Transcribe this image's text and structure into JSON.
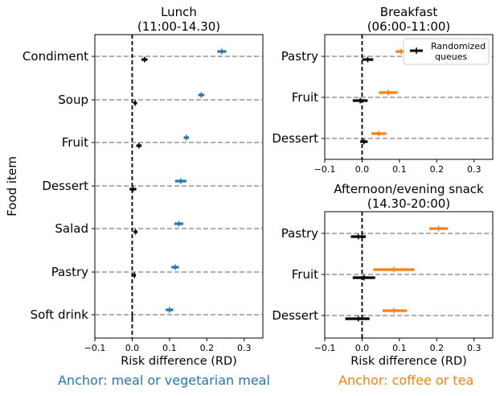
{
  "chart_data": [
    {
      "type": "forest",
      "title": "Lunch",
      "subtitle": "(11:00-14.30)",
      "xlabel": "Risk difference (RD)",
      "ylabel": "Food item",
      "xlim": [
        -0.1,
        0.35
      ],
      "xticks": [
        "−0.1",
        "0.0",
        "0.1",
        "0.2",
        "0.3"
      ],
      "xtick_values": [
        -0.1,
        0.0,
        0.1,
        0.2,
        0.3
      ],
      "categories": [
        "Condiment",
        "Soup",
        "Fruit",
        "Dessert",
        "Salad",
        "Pastry",
        "Soft drink"
      ],
      "series": [
        {
          "name": "Anchor",
          "color": "#1f77b4",
          "values": [
            0.24,
            0.185,
            0.145,
            0.13,
            0.125,
            0.115,
            0.1
          ],
          "ci_low": [
            0.228,
            0.177,
            0.138,
            0.115,
            0.113,
            0.105,
            0.09
          ],
          "ci_high": [
            0.252,
            0.193,
            0.152,
            0.145,
            0.137,
            0.125,
            0.11
          ]
        },
        {
          "name": "Randomized queues",
          "color": "#000000",
          "values": [
            0.033,
            0.008,
            0.018,
            0.002,
            0.009,
            0.006,
            0.0
          ],
          "ci_low": [
            0.025,
            0.003,
            0.011,
            -0.007,
            0.004,
            0.002,
            -0.002
          ],
          "ci_high": [
            0.041,
            0.013,
            0.025,
            0.011,
            0.014,
            0.01,
            0.002
          ]
        }
      ],
      "grid_lines": "dashed at each category",
      "zero_line": "dashed vertical at 0"
    },
    {
      "type": "forest",
      "title": "Breakfast",
      "subtitle": "(06:00-11:00)",
      "xlim": [
        -0.1,
        0.35
      ],
      "xticks": [
        "−0.1",
        "0.0",
        "0.1",
        "0.2",
        "0.3"
      ],
      "xtick_values": [
        -0.1,
        0.0,
        0.1,
        0.2,
        0.3
      ],
      "categories": [
        "Pastry",
        "Fruit",
        "Dessert"
      ],
      "series": [
        {
          "name": "Anchor",
          "color": "#ff7f0e",
          "values": [
            0.105,
            0.07,
            0.045
          ],
          "ci_low": [
            0.09,
            0.045,
            0.025
          ],
          "ci_high": [
            0.12,
            0.095,
            0.065
          ]
        },
        {
          "name": "Randomized queues",
          "color": "#000000",
          "values": [
            0.015,
            -0.005,
            0.005
          ],
          "ci_low": [
            0.0,
            -0.025,
            -0.005
          ],
          "ci_high": [
            0.03,
            0.015,
            0.015
          ]
        }
      ],
      "legend": {
        "label_line1": "Randomized",
        "label_line2": "queues",
        "position": "top-right"
      }
    },
    {
      "type": "forest",
      "title": "Afternoon/evening snack",
      "subtitle": "(14.30-20:00)",
      "xlabel": "Risk difference (RD)",
      "xlim": [
        -0.1,
        0.35
      ],
      "xticks": [
        "−0.1",
        "0.0",
        "0.1",
        "0.2",
        "0.3"
      ],
      "xtick_values": [
        -0.1,
        0.0,
        0.1,
        0.2,
        0.3
      ],
      "categories": [
        "Pastry",
        "Fruit",
        "Dessert"
      ],
      "series": [
        {
          "name": "Anchor",
          "color": "#ff7f0e",
          "values": [
            0.205,
            0.085,
            0.085
          ],
          "ci_low": [
            0.18,
            0.03,
            0.055
          ],
          "ci_high": [
            0.23,
            0.14,
            0.12
          ]
        },
        {
          "name": "Randomized queues",
          "color": "#000000",
          "values": [
            -0.01,
            0.005,
            -0.01
          ],
          "ci_low": [
            -0.03,
            -0.025,
            -0.045
          ],
          "ci_high": [
            0.01,
            0.035,
            0.02
          ]
        }
      ]
    }
  ],
  "footer": {
    "left_text": "Anchor: meal or vegetarian meal",
    "left_color": "#1f77b4",
    "right_text": "Anchor: coffee or tea",
    "right_color": "#ff7f0e"
  }
}
